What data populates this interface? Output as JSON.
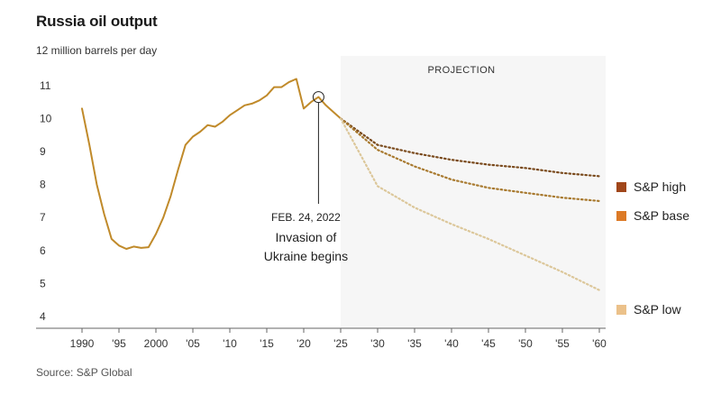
{
  "title": "Russia oil output",
  "unit_label": "12 million barrels per day",
  "source": "Source: S&P Global",
  "projection_label": "PROJECTION",
  "annotation": {
    "date": "FEB. 24, 2022",
    "line1": "Invasion of",
    "line2": "Ukraine begins"
  },
  "colors": {
    "history": "#c08a2a",
    "high": "#7a4a1c",
    "base": "#a8792e",
    "low": "#dcc79a",
    "high_swatch": "#a0461a",
    "base_swatch": "#dc7a26",
    "low_swatch": "#ebc18a",
    "projection_shade": "#f6f6f6"
  },
  "chart_data": {
    "type": "line",
    "title": "Russia oil output",
    "ylabel": "12 million barrels per day",
    "ylim": [
      4,
      12
    ],
    "xlim": [
      1987,
      2061
    ],
    "x_ticks": [
      1990,
      1995,
      2000,
      2005,
      2010,
      2015,
      2020,
      2025,
      2030,
      2035,
      2040,
      2045,
      2050,
      2055,
      2060
    ],
    "x_tick_labels": [
      "1990",
      "'95",
      "2000",
      "'05",
      "'10",
      "'15",
      "'20",
      "'25",
      "'30",
      "'35",
      "'40",
      "'45",
      "'50",
      "'55",
      "'60"
    ],
    "y_ticks": [
      4,
      5,
      6,
      7,
      8,
      9,
      10,
      11
    ],
    "y_tick_labels": [
      "4",
      "5",
      "6",
      "7",
      "8",
      "9",
      "10",
      "11"
    ],
    "projection_start": 2025,
    "series": [
      {
        "key": "history",
        "x": [
          1990,
          1991,
          1992,
          1993,
          1994,
          1995,
          1996,
          1997,
          1998,
          1999,
          2000,
          2001,
          2002,
          2003,
          2004,
          2005,
          2006,
          2007,
          2008,
          2009,
          2010,
          2011,
          2012,
          2013,
          2014,
          2015,
          2016,
          2017,
          2018,
          2019,
          2020,
          2021,
          2022,
          2023,
          2024,
          2025
        ],
        "values": [
          10.3,
          9.2,
          8.0,
          7.1,
          6.35,
          6.15,
          6.05,
          6.12,
          6.08,
          6.1,
          6.5,
          7.0,
          7.65,
          8.45,
          9.2,
          9.45,
          9.6,
          9.8,
          9.75,
          9.9,
          10.1,
          10.25,
          10.4,
          10.45,
          10.55,
          10.7,
          10.95,
          10.95,
          11.1,
          11.2,
          10.3,
          10.5,
          10.65,
          10.4,
          10.2,
          10.0
        ]
      },
      {
        "key": "high",
        "name": "S&P high",
        "x": [
          2025,
          2030,
          2035,
          2040,
          2045,
          2050,
          2055,
          2060
        ],
        "values": [
          10.0,
          9.2,
          8.95,
          8.75,
          8.6,
          8.5,
          8.35,
          8.25
        ]
      },
      {
        "key": "base",
        "name": "S&P base",
        "x": [
          2025,
          2030,
          2035,
          2040,
          2045,
          2050,
          2055,
          2060
        ],
        "values": [
          10.0,
          9.05,
          8.55,
          8.15,
          7.9,
          7.75,
          7.6,
          7.5
        ]
      },
      {
        "key": "low",
        "name": "S&P low",
        "x": [
          2025,
          2030,
          2035,
          2040,
          2045,
          2050,
          2055,
          2060
        ],
        "values": [
          10.0,
          7.95,
          7.3,
          6.8,
          6.35,
          5.85,
          5.35,
          4.8
        ]
      }
    ],
    "event": {
      "x": 2022,
      "y": 10.65
    },
    "legend": [
      {
        "name": "S&P high",
        "swatch": "high_swatch"
      },
      {
        "name": "S&P base",
        "swatch": "base_swatch"
      },
      {
        "name": "S&P low",
        "swatch": "low_swatch"
      }
    ],
    "legend_position": "right"
  }
}
